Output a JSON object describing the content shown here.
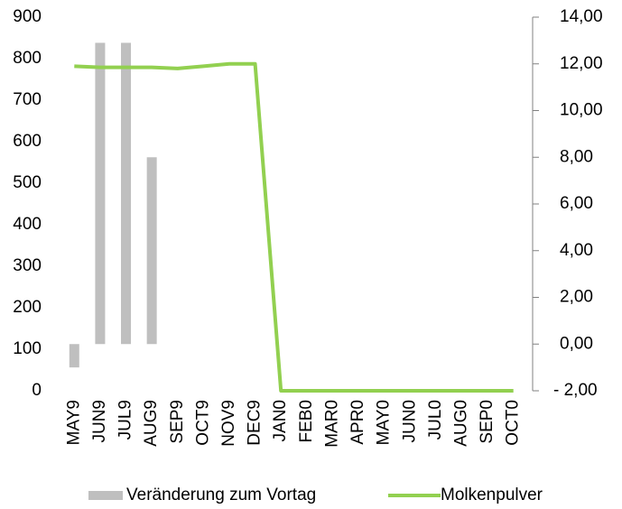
{
  "chart_data": {
    "type": "bar_line",
    "categories": [
      "MAY9",
      "JUN9",
      "JUL9",
      "AUG9",
      "SEP9",
      "OCT9",
      "NOV9",
      "DEC9",
      "JAN0",
      "FEB0",
      "MAR0",
      "APR0",
      "MAY0",
      "JUN0",
      "JUL0",
      "AUG0",
      "SEP0",
      "OCT0"
    ],
    "series": [
      {
        "name": "Veränderung zum Vortag",
        "type": "bar",
        "axis": "y2",
        "color": "#bfbfbf",
        "values": [
          -1.0,
          12.9,
          12.9,
          8.0,
          null,
          null,
          null,
          null,
          null,
          null,
          null,
          null,
          null,
          null,
          null,
          null,
          null,
          null
        ]
      },
      {
        "name": "Molkenpulver",
        "type": "line",
        "axis": "y2",
        "color": "#92d050",
        "values": [
          11.9,
          11.85,
          11.85,
          11.85,
          11.8,
          11.9,
          12.0,
          12.0,
          -2.0,
          -2.0,
          -2.0,
          -2.0,
          -2.0,
          -2.0,
          -2.0,
          -2.0,
          -2.0,
          -2.0
        ]
      }
    ],
    "ylim": [
      0,
      900
    ],
    "yticks": [
      0,
      100,
      200,
      300,
      400,
      500,
      600,
      700,
      800,
      900
    ],
    "y2lim": [
      -2,
      14
    ],
    "y2ticks": [
      {
        "value": -2,
        "label": "- 2,00"
      },
      {
        "value": 0,
        "label": "0,00"
      },
      {
        "value": 2,
        "label": "2,00"
      },
      {
        "value": 4,
        "label": "4,00"
      },
      {
        "value": 6,
        "label": "6,00"
      },
      {
        "value": 8,
        "label": "8,00"
      },
      {
        "value": 10,
        "label": "10,00"
      },
      {
        "value": 12,
        "label": "12,00"
      },
      {
        "value": 14,
        "label": "14,00"
      }
    ],
    "y2tick_color": "#008000",
    "y2tick_negative_color": "#ff0000",
    "legend": "bottom"
  }
}
